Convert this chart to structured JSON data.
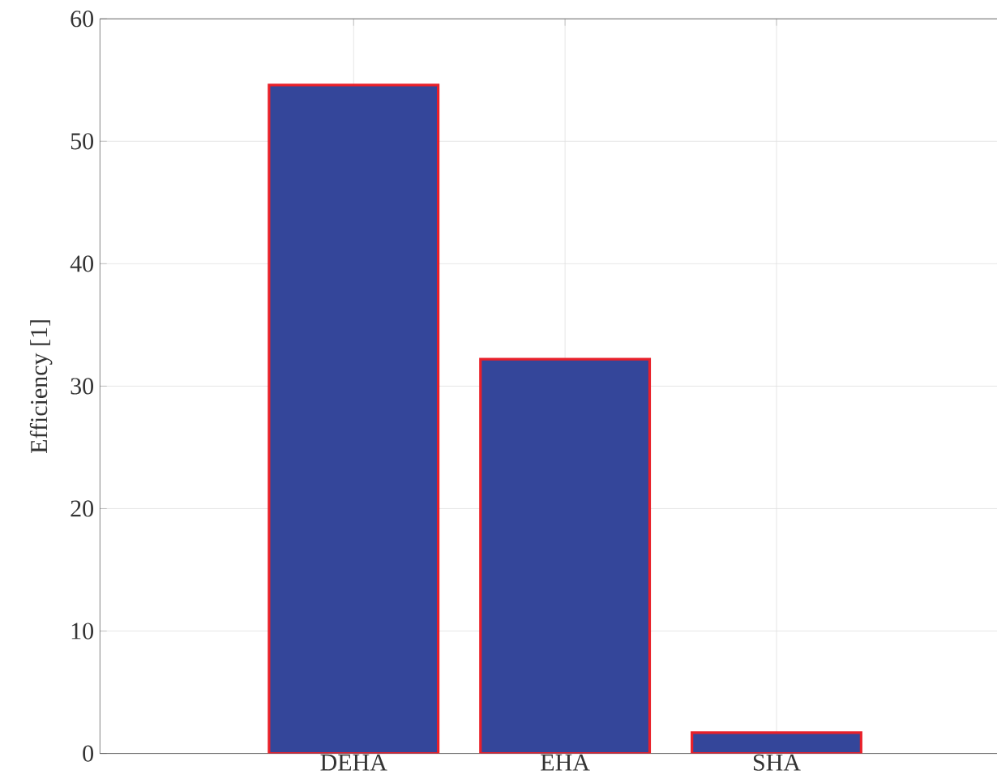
{
  "chart_data": {
    "type": "bar",
    "ylabel": "Efficiency [1]",
    "categories": [
      "DEHA",
      "EHA",
      "SHA"
    ],
    "values": [
      54.6,
      32.2,
      1.7
    ],
    "color": "#34469a",
    "ylim": [
      0,
      60
    ],
    "yticks": [
      0,
      10,
      20,
      30,
      40,
      50,
      60
    ],
    "grid": true
  }
}
